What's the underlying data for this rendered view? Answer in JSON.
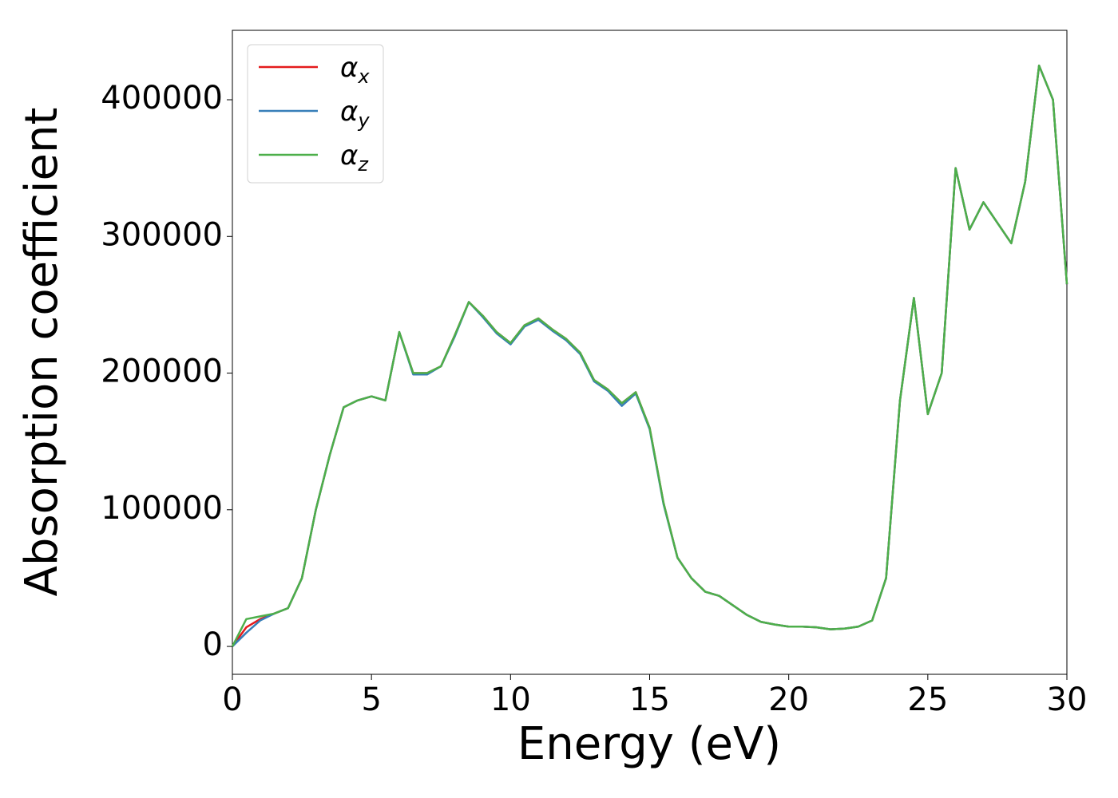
{
  "chart_data": {
    "type": "line",
    "xlabel": "Energy (eV)",
    "ylabel": "Absorption coefficient",
    "x": [
      0,
      0.5,
      1,
      1.5,
      2,
      2.5,
      3,
      3.5,
      4,
      4.5,
      5,
      5.5,
      6,
      6.5,
      7,
      7.5,
      8,
      8.5,
      9,
      9.5,
      10,
      10.5,
      11,
      11.5,
      12,
      12.5,
      13,
      13.5,
      14,
      14.5,
      15,
      15.5,
      16,
      16.5,
      17,
      17.5,
      18,
      18.5,
      19,
      19.5,
      20,
      20.5,
      21,
      21.5,
      22,
      22.5,
      23,
      23.5,
      24,
      24.5,
      25,
      25.5,
      26,
      26.5,
      27,
      27.5,
      28,
      28.5,
      29,
      29.5,
      30
    ],
    "series": [
      {
        "name": "αx",
        "color": "#e41a1c",
        "values": [
          0,
          14000,
          20000,
          24000,
          28000,
          50000,
          100000,
          140000,
          175000,
          180000,
          183000,
          180000,
          230000,
          200000,
          200000,
          205000,
          228000,
          252000,
          242000,
          230000,
          222000,
          235000,
          240000,
          232000,
          225000,
          215000,
          195000,
          188000,
          178000,
          186000,
          160000,
          105000,
          65000,
          50000,
          40000,
          37000,
          30000,
          23000,
          18000,
          16000,
          14500,
          14500,
          14000,
          12500,
          13000,
          14500,
          19000,
          50000,
          180000,
          255000,
          170000,
          200000,
          350000,
          305000,
          325000,
          310000,
          295000,
          340000,
          425000,
          400000,
          265000
        ]
      },
      {
        "name": "αy",
        "color": "#377eb8",
        "values": [
          0,
          10000,
          19000,
          24000,
          28000,
          50000,
          100000,
          140000,
          175000,
          180000,
          183000,
          180000,
          230000,
          199000,
          199000,
          205000,
          227000,
          252000,
          241000,
          229000,
          221000,
          234000,
          239000,
          231000,
          224000,
          214000,
          194000,
          187000,
          176000,
          185000,
          159000,
          104000,
          65000,
          50000,
          40000,
          37000,
          30000,
          23000,
          18000,
          16000,
          14500,
          14500,
          14000,
          12500,
          13000,
          14500,
          19000,
          50000,
          180000,
          255000,
          170000,
          200000,
          350000,
          305000,
          325000,
          310000,
          295000,
          340000,
          425000,
          400000,
          265000
        ]
      },
      {
        "name": "αz",
        "color": "#4daf4a",
        "values": [
          0,
          20000,
          22000,
          24000,
          28000,
          50000,
          100000,
          140000,
          175000,
          180000,
          183000,
          180000,
          230000,
          200000,
          200000,
          205000,
          228000,
          252000,
          242000,
          230000,
          222000,
          235000,
          240000,
          232000,
          225000,
          215000,
          195000,
          188000,
          178000,
          186000,
          160000,
          105000,
          65000,
          50000,
          40000,
          37000,
          30000,
          23000,
          18000,
          16000,
          14500,
          14500,
          14000,
          12500,
          13000,
          14500,
          19000,
          50000,
          180000,
          255000,
          170000,
          200000,
          350000,
          305000,
          325000,
          310000,
          295000,
          340000,
          425000,
          400000,
          265000
        ]
      }
    ],
    "xlim": [
      0,
      30
    ],
    "xticks": [
      0,
      5,
      10,
      15,
      20,
      25,
      30
    ],
    "ylim": [
      -20400,
      450800
    ],
    "yticks": [
      0,
      100000,
      200000,
      300000,
      400000
    ],
    "legend": "upper left",
    "grid": false
  }
}
